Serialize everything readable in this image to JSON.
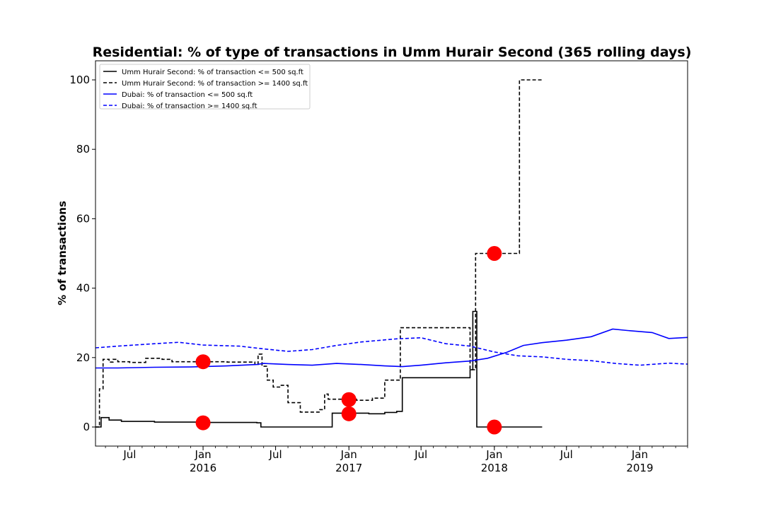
{
  "chart_data": {
    "type": "line",
    "title": "Residential: % of type of transactions in Umm Hurair Second (365 rolling days)",
    "xlabel": "",
    "ylabel": "% of transactions",
    "xlim": [
      "2015-04-06",
      "2019-05-01"
    ],
    "ylim": [
      -5.5,
      105.5
    ],
    "y_ticks": [
      0,
      20,
      40,
      60,
      80,
      100
    ],
    "x_ticks": [
      {
        "date": "2015-07-01",
        "label": "Jul",
        "year": ""
      },
      {
        "date": "2016-01-01",
        "label": "Jan",
        "year": "2016"
      },
      {
        "date": "2016-07-01",
        "label": "Jul",
        "year": ""
      },
      {
        "date": "2017-01-01",
        "label": "Jan",
        "year": "2017"
      },
      {
        "date": "2017-07-01",
        "label": "Jul",
        "year": ""
      },
      {
        "date": "2018-01-01",
        "label": "Jan",
        "year": "2018"
      },
      {
        "date": "2018-07-01",
        "label": "Jul",
        "year": ""
      },
      {
        "date": "2019-01-01",
        "label": "Jan",
        "year": "2019"
      }
    ],
    "grid": false,
    "legend_position": "top-left",
    "series": [
      {
        "name": "Umm Hurair Second: % of transaction <= 500 sq.ft",
        "color": "#000000",
        "dash": "solid",
        "step": true,
        "points": [
          [
            "2015-04-06",
            0
          ],
          [
            "2015-04-20",
            2.7
          ],
          [
            "2015-05-10",
            2.0
          ],
          [
            "2015-06-10",
            1.6
          ],
          [
            "2015-09-01",
            1.4
          ],
          [
            "2016-01-01",
            1.3
          ],
          [
            "2016-05-15",
            1.2
          ],
          [
            "2016-05-25",
            0
          ],
          [
            "2016-11-15",
            0
          ],
          [
            "2016-11-20",
            4.0
          ],
          [
            "2017-02-20",
            3.8
          ],
          [
            "2017-04-01",
            4.2
          ],
          [
            "2017-05-01",
            4.5
          ],
          [
            "2017-05-15",
            14.2
          ],
          [
            "2017-10-25",
            14.2
          ],
          [
            "2017-11-01",
            16.5
          ],
          [
            "2017-11-08",
            33.3
          ],
          [
            "2017-11-18",
            0
          ],
          [
            "2018-05-01",
            0
          ]
        ]
      },
      {
        "name": "Umm Hurair Second: % of transaction >= 1400 sq.ft",
        "color": "#000000",
        "dash": "dashed",
        "step": true,
        "points": [
          [
            "2015-04-06",
            0
          ],
          [
            "2015-04-16",
            11.0
          ],
          [
            "2015-04-25",
            19.5
          ],
          [
            "2015-05-10",
            18.7
          ],
          [
            "2015-05-20",
            19.5
          ],
          [
            "2015-06-01",
            18.8
          ],
          [
            "2015-07-01",
            18.6
          ],
          [
            "2015-08-10",
            19.8
          ],
          [
            "2015-09-20",
            19.5
          ],
          [
            "2015-10-15",
            18.8
          ],
          [
            "2016-03-01",
            18.7
          ],
          [
            "2016-05-10",
            18.0
          ],
          [
            "2016-05-18",
            21.0
          ],
          [
            "2016-05-28",
            17.5
          ],
          [
            "2016-06-10",
            13.5
          ],
          [
            "2016-06-25",
            11.5
          ],
          [
            "2016-07-15",
            12.0
          ],
          [
            "2016-08-01",
            7.0
          ],
          [
            "2016-09-01",
            4.3
          ],
          [
            "2016-10-20",
            5.0
          ],
          [
            "2016-11-01",
            9.5
          ],
          [
            "2016-11-10",
            8.0
          ],
          [
            "2017-01-20",
            7.7
          ],
          [
            "2017-03-01",
            8.3
          ],
          [
            "2017-04-01",
            13.5
          ],
          [
            "2017-05-10",
            28.6
          ],
          [
            "2017-10-25",
            28.6
          ],
          [
            "2017-11-01",
            16.5
          ],
          [
            "2017-11-15",
            50.0
          ],
          [
            "2018-03-01",
            50.0
          ],
          [
            "2018-03-05",
            100.0
          ],
          [
            "2018-05-01",
            100.0
          ]
        ]
      },
      {
        "name": "Dubai: % of transaction <= 500 sq.ft",
        "color": "#0000ff",
        "dash": "solid",
        "step": false,
        "points": [
          [
            "2015-04-06",
            17.0
          ],
          [
            "2015-06-01",
            17.0
          ],
          [
            "2015-09-01",
            17.2
          ],
          [
            "2015-12-01",
            17.3
          ],
          [
            "2016-03-01",
            17.6
          ],
          [
            "2016-05-15",
            18.0
          ],
          [
            "2016-06-01",
            18.3
          ],
          [
            "2016-08-01",
            18.0
          ],
          [
            "2016-10-01",
            17.8
          ],
          [
            "2016-12-01",
            18.3
          ],
          [
            "2017-02-01",
            18.0
          ],
          [
            "2017-04-01",
            17.6
          ],
          [
            "2017-05-15",
            17.4
          ],
          [
            "2017-07-01",
            17.8
          ],
          [
            "2017-09-01",
            18.5
          ],
          [
            "2017-11-01",
            19.0
          ],
          [
            "2017-12-15",
            19.8
          ],
          [
            "2018-02-01",
            21.5
          ],
          [
            "2018-03-15",
            23.5
          ],
          [
            "2018-05-01",
            24.3
          ],
          [
            "2018-07-01",
            25.0
          ],
          [
            "2018-09-01",
            26.0
          ],
          [
            "2018-10-25",
            28.2
          ],
          [
            "2018-12-01",
            27.8
          ],
          [
            "2019-02-01",
            27.2
          ],
          [
            "2019-03-15",
            25.5
          ],
          [
            "2019-05-01",
            25.8
          ]
        ]
      },
      {
        "name": "Dubai: % of transaction >= 1400 sq.ft",
        "color": "#0000ff",
        "dash": "dashed",
        "step": false,
        "points": [
          [
            "2015-04-06",
            22.8
          ],
          [
            "2015-06-01",
            23.3
          ],
          [
            "2015-09-01",
            24.0
          ],
          [
            "2015-11-01",
            24.4
          ],
          [
            "2016-01-01",
            23.6
          ],
          [
            "2016-04-01",
            23.3
          ],
          [
            "2016-06-01",
            22.5
          ],
          [
            "2016-08-01",
            21.8
          ],
          [
            "2016-10-01",
            22.3
          ],
          [
            "2016-12-01",
            23.5
          ],
          [
            "2017-02-01",
            24.5
          ],
          [
            "2017-05-01",
            25.4
          ],
          [
            "2017-07-01",
            25.7
          ],
          [
            "2017-09-01",
            24.0
          ],
          [
            "2017-11-01",
            23.3
          ],
          [
            "2018-01-01",
            21.6
          ],
          [
            "2018-03-01",
            20.5
          ],
          [
            "2018-05-01",
            20.2
          ],
          [
            "2018-07-01",
            19.5
          ],
          [
            "2018-09-01",
            19.1
          ],
          [
            "2018-11-01",
            18.3
          ],
          [
            "2019-01-01",
            17.8
          ],
          [
            "2019-03-15",
            18.4
          ],
          [
            "2019-05-01",
            18.1
          ]
        ]
      }
    ],
    "markers": {
      "color": "#ff0000",
      "points": [
        [
          "2016-01-01",
          18.8
        ],
        [
          "2016-01-01",
          1.2
        ],
        [
          "2017-01-01",
          7.9
        ],
        [
          "2017-01-01",
          3.8
        ],
        [
          "2018-01-01",
          50.0
        ],
        [
          "2018-01-01",
          0
        ]
      ]
    }
  }
}
